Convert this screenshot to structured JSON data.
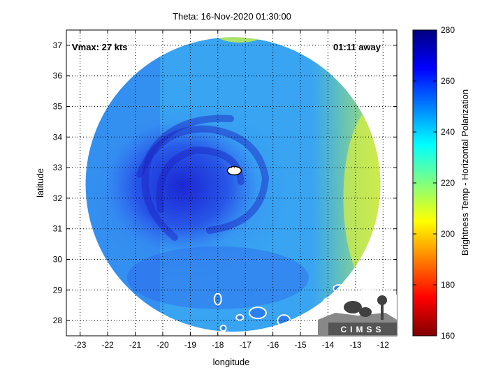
{
  "title": "Theta: 16-Nov-2020 01:30:00",
  "vmax_label": "Vmax: 27 kts",
  "time_label": "01:11 away",
  "xlabel": "longitude",
  "ylabel": "latitude",
  "colorbar_label": "Brightness Temp - Horizontal Polarization",
  "logo_text": "CIMSS",
  "xaxis": {
    "min": -23.5,
    "max": -11.5,
    "ticks": [
      -23,
      -22,
      -21,
      -20,
      -19,
      -18,
      -17,
      -16,
      -15,
      -14,
      -13,
      -12
    ]
  },
  "yaxis": {
    "min": 27.5,
    "max": 37.5,
    "ticks": [
      28,
      29,
      30,
      31,
      32,
      33,
      34,
      35,
      36,
      37
    ]
  },
  "colorbar": {
    "min": 160,
    "max": 280,
    "ticks": [
      160,
      180,
      200,
      220,
      240,
      260,
      280
    ]
  },
  "swath": {
    "center_lon": -17.45,
    "center_lat": 32.45,
    "radius_deg": 5.35
  },
  "storm_center": {
    "lon": -17.4,
    "lat": 32.9
  },
  "grid": true
}
